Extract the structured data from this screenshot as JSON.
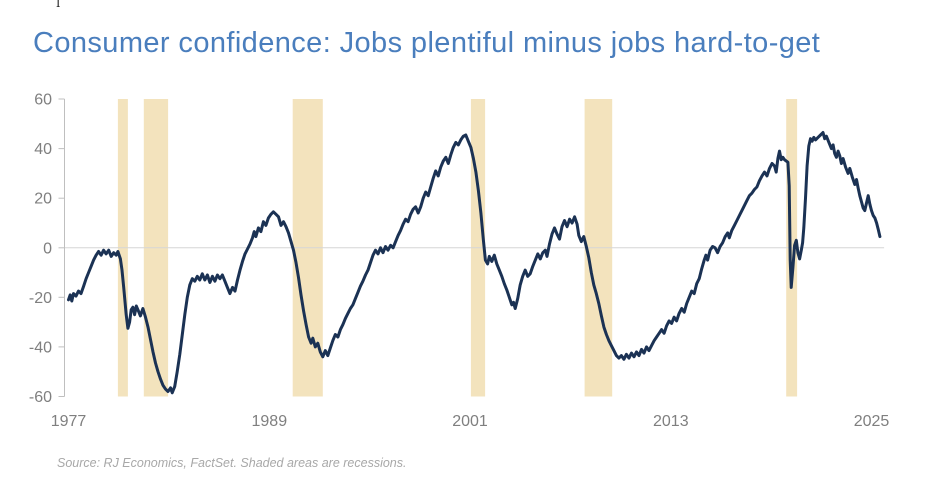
{
  "page": {
    "title": "Consumer confidence: Jobs plentiful minus jobs hard-to-get",
    "source_note": "Source: RJ Economics, FactSet. Shaded areas are recessions.",
    "cursor_artifact_glyph": "I"
  },
  "colors": {
    "title": "#4A7EBD",
    "line": "#1B3254",
    "recession_band": "#F3E3BD",
    "axis_labels": "#7F7F7F",
    "axis_line": "#BFBFBF",
    "zero_gridline": "#D6D6D6",
    "source_note": "#A8A8A8",
    "background": "#FFFFFF"
  },
  "chart_data": {
    "type": "line",
    "title": "Consumer confidence: Jobs plentiful minus jobs hard-to-get",
    "series_name": "Jobs plentiful minus jobs hard-to-get",
    "xlabel": "",
    "ylabel": "",
    "legend": "none",
    "grid": "zero-line-only",
    "x_axis": {
      "ticks": [
        1977,
        1989,
        2001,
        2013,
        2025
      ],
      "min": 1976.8,
      "max": 2026.0
    },
    "y_axis": {
      "ticks": [
        60,
        40,
        20,
        0,
        -20,
        -40,
        -60
      ],
      "min": -60,
      "max": 60
    },
    "recessions": [
      [
        1979.95,
        1980.55
      ],
      [
        1981.5,
        1982.95
      ],
      [
        1990.4,
        1992.2
      ],
      [
        2001.05,
        2001.9
      ],
      [
        2007.85,
        2009.5
      ],
      [
        2019.9,
        2020.55
      ]
    ],
    "points": [
      [
        1977.0,
        -21
      ],
      [
        1977.1,
        -19
      ],
      [
        1977.2,
        -21.5
      ],
      [
        1977.3,
        -18.5
      ],
      [
        1977.45,
        -19.5
      ],
      [
        1977.6,
        -17.5
      ],
      [
        1977.75,
        -18.5
      ],
      [
        1977.9,
        -15.5
      ],
      [
        1978.05,
        -12.5
      ],
      [
        1978.2,
        -10
      ],
      [
        1978.35,
        -7.5
      ],
      [
        1978.5,
        -5
      ],
      [
        1978.65,
        -3
      ],
      [
        1978.8,
        -1.5
      ],
      [
        1978.95,
        -3
      ],
      [
        1979.1,
        -1
      ],
      [
        1979.25,
        -2.5
      ],
      [
        1979.4,
        -1
      ],
      [
        1979.55,
        -3.5
      ],
      [
        1979.7,
        -2
      ],
      [
        1979.85,
        -3
      ],
      [
        1979.95,
        -1.5
      ],
      [
        1980.1,
        -4.5
      ],
      [
        1980.2,
        -9
      ],
      [
        1980.3,
        -16
      ],
      [
        1980.45,
        -27
      ],
      [
        1980.55,
        -32.5
      ],
      [
        1980.65,
        -30
      ],
      [
        1980.75,
        -25
      ],
      [
        1980.85,
        -24
      ],
      [
        1980.95,
        -27
      ],
      [
        1981.05,
        -23.5
      ],
      [
        1981.15,
        -25
      ],
      [
        1981.3,
        -27.5
      ],
      [
        1981.45,
        -24.5
      ],
      [
        1981.6,
        -28
      ],
      [
        1981.75,
        -32
      ],
      [
        1981.9,
        -37
      ],
      [
        1982.05,
        -42
      ],
      [
        1982.2,
        -46.5
      ],
      [
        1982.35,
        -50
      ],
      [
        1982.5,
        -53
      ],
      [
        1982.65,
        -55.5
      ],
      [
        1982.8,
        -57
      ],
      [
        1982.95,
        -58
      ],
      [
        1983.1,
        -56.5
      ],
      [
        1983.2,
        -58.5
      ],
      [
        1983.35,
        -56
      ],
      [
        1983.5,
        -50
      ],
      [
        1983.65,
        -43
      ],
      [
        1983.8,
        -35
      ],
      [
        1983.95,
        -27
      ],
      [
        1984.1,
        -20
      ],
      [
        1984.25,
        -15
      ],
      [
        1984.4,
        -12.5
      ],
      [
        1984.55,
        -13.5
      ],
      [
        1984.7,
        -11.5
      ],
      [
        1984.85,
        -13
      ],
      [
        1985.0,
        -10.5
      ],
      [
        1985.15,
        -13
      ],
      [
        1985.3,
        -11
      ],
      [
        1985.45,
        -14
      ],
      [
        1985.6,
        -11.5
      ],
      [
        1985.75,
        -13.5
      ],
      [
        1985.9,
        -11
      ],
      [
        1986.05,
        -12.5
      ],
      [
        1986.2,
        -11
      ],
      [
        1986.35,
        -13.5
      ],
      [
        1986.5,
        -16
      ],
      [
        1986.65,
        -18.5
      ],
      [
        1986.8,
        -16
      ],
      [
        1986.95,
        -17.5
      ],
      [
        1987.1,
        -13
      ],
      [
        1987.25,
        -9
      ],
      [
        1987.4,
        -5.5
      ],
      [
        1987.55,
        -2.5
      ],
      [
        1987.7,
        -0.5
      ],
      [
        1987.85,
        1.5
      ],
      [
        1988.0,
        4
      ],
      [
        1988.1,
        6.5
      ],
      [
        1988.2,
        4.5
      ],
      [
        1988.35,
        8
      ],
      [
        1988.5,
        6.5
      ],
      [
        1988.65,
        10.5
      ],
      [
        1988.8,
        9
      ],
      [
        1988.95,
        12
      ],
      [
        1989.1,
        13.5
      ],
      [
        1989.25,
        14.5
      ],
      [
        1989.4,
        13.5
      ],
      [
        1989.55,
        12.5
      ],
      [
        1989.7,
        9
      ],
      [
        1989.85,
        10.5
      ],
      [
        1990.0,
        8.5
      ],
      [
        1990.15,
        6
      ],
      [
        1990.3,
        2.5
      ],
      [
        1990.45,
        -1
      ],
      [
        1990.6,
        -6
      ],
      [
        1990.75,
        -12
      ],
      [
        1990.9,
        -19
      ],
      [
        1991.05,
        -25.5
      ],
      [
        1991.2,
        -31
      ],
      [
        1991.35,
        -36
      ],
      [
        1991.5,
        -38.5
      ],
      [
        1991.6,
        -36.5
      ],
      [
        1991.75,
        -40
      ],
      [
        1991.9,
        -38.5
      ],
      [
        1992.05,
        -42
      ],
      [
        1992.2,
        -44
      ],
      [
        1992.35,
        -41.5
      ],
      [
        1992.5,
        -43.5
      ],
      [
        1992.65,
        -40.5
      ],
      [
        1992.8,
        -37.5
      ],
      [
        1992.95,
        -35
      ],
      [
        1993.1,
        -36
      ],
      [
        1993.25,
        -33
      ],
      [
        1993.4,
        -31
      ],
      [
        1993.55,
        -28.5
      ],
      [
        1993.7,
        -26.5
      ],
      [
        1993.85,
        -24.5
      ],
      [
        1994.0,
        -23
      ],
      [
        1994.15,
        -20.5
      ],
      [
        1994.3,
        -18
      ],
      [
        1994.45,
        -15.5
      ],
      [
        1994.6,
        -13.5
      ],
      [
        1994.75,
        -11
      ],
      [
        1994.9,
        -9
      ],
      [
        1995.05,
        -6
      ],
      [
        1995.2,
        -3
      ],
      [
        1995.35,
        -1
      ],
      [
        1995.5,
        -2.5
      ],
      [
        1995.65,
        0
      ],
      [
        1995.8,
        -2
      ],
      [
        1995.95,
        0.5
      ],
      [
        1996.1,
        -1
      ],
      [
        1996.25,
        1
      ],
      [
        1996.4,
        0
      ],
      [
        1996.55,
        2.5
      ],
      [
        1996.7,
        5
      ],
      [
        1996.85,
        7
      ],
      [
        1997.0,
        9.5
      ],
      [
        1997.15,
        11.5
      ],
      [
        1997.3,
        10.5
      ],
      [
        1997.45,
        13.5
      ],
      [
        1997.6,
        15.5
      ],
      [
        1997.75,
        16.5
      ],
      [
        1997.9,
        14
      ],
      [
        1998.05,
        16.5
      ],
      [
        1998.2,
        20
      ],
      [
        1998.35,
        22.5
      ],
      [
        1998.5,
        21
      ],
      [
        1998.65,
        24.5
      ],
      [
        1998.8,
        28
      ],
      [
        1998.95,
        31
      ],
      [
        1999.1,
        29
      ],
      [
        1999.25,
        32.5
      ],
      [
        1999.4,
        35
      ],
      [
        1999.55,
        36.5
      ],
      [
        1999.7,
        34
      ],
      [
        1999.85,
        37.5
      ],
      [
        2000.0,
        40.5
      ],
      [
        2000.15,
        42.5
      ],
      [
        2000.3,
        41.5
      ],
      [
        2000.45,
        43.5
      ],
      [
        2000.6,
        45
      ],
      [
        2000.75,
        45.5
      ],
      [
        2000.9,
        43
      ],
      [
        2001.05,
        40.5
      ],
      [
        2001.2,
        36
      ],
      [
        2001.35,
        30.5
      ],
      [
        2001.5,
        23
      ],
      [
        2001.65,
        14
      ],
      [
        2001.8,
        3
      ],
      [
        2001.92,
        -5
      ],
      [
        2002.05,
        -6.5
      ],
      [
        2002.15,
        -3.5
      ],
      [
        2002.3,
        -5.5
      ],
      [
        2002.45,
        -3
      ],
      [
        2002.6,
        -6.5
      ],
      [
        2002.75,
        -9
      ],
      [
        2002.9,
        -11.5
      ],
      [
        2003.05,
        -14.5
      ],
      [
        2003.2,
        -17
      ],
      [
        2003.35,
        -20
      ],
      [
        2003.5,
        -23
      ],
      [
        2003.6,
        -22
      ],
      [
        2003.7,
        -24.5
      ],
      [
        2003.85,
        -20.5
      ],
      [
        2004.0,
        -15
      ],
      [
        2004.15,
        -11.5
      ],
      [
        2004.3,
        -9
      ],
      [
        2004.45,
        -11.5
      ],
      [
        2004.6,
        -10.5
      ],
      [
        2004.75,
        -7.5
      ],
      [
        2004.9,
        -5
      ],
      [
        2005.05,
        -2.5
      ],
      [
        2005.2,
        -4.5
      ],
      [
        2005.35,
        -2
      ],
      [
        2005.5,
        -1
      ],
      [
        2005.6,
        -3.5
      ],
      [
        2005.75,
        1.5
      ],
      [
        2005.9,
        5.5
      ],
      [
        2006.05,
        8
      ],
      [
        2006.2,
        5.5
      ],
      [
        2006.35,
        3.5
      ],
      [
        2006.5,
        8.5
      ],
      [
        2006.65,
        11
      ],
      [
        2006.8,
        8.5
      ],
      [
        2006.95,
        11.5
      ],
      [
        2007.1,
        10
      ],
      [
        2007.25,
        12.5
      ],
      [
        2007.4,
        9.5
      ],
      [
        2007.5,
        5
      ],
      [
        2007.65,
        2.5
      ],
      [
        2007.8,
        4.5
      ],
      [
        2007.95,
        0.5
      ],
      [
        2008.1,
        -4
      ],
      [
        2008.25,
        -10
      ],
      [
        2008.4,
        -15
      ],
      [
        2008.55,
        -18.5
      ],
      [
        2008.7,
        -22.5
      ],
      [
        2008.85,
        -27.5
      ],
      [
        2009.0,
        -32
      ],
      [
        2009.15,
        -35
      ],
      [
        2009.3,
        -37.5
      ],
      [
        2009.45,
        -39.5
      ],
      [
        2009.6,
        -41.5
      ],
      [
        2009.75,
        -43.5
      ],
      [
        2009.9,
        -44.5
      ],
      [
        2010.05,
        -43.5
      ],
      [
        2010.2,
        -45
      ],
      [
        2010.35,
        -43
      ],
      [
        2010.5,
        -44.5
      ],
      [
        2010.65,
        -42.5
      ],
      [
        2010.8,
        -44
      ],
      [
        2010.95,
        -42
      ],
      [
        2011.1,
        -43.5
      ],
      [
        2011.25,
        -41
      ],
      [
        2011.4,
        -42.5
      ],
      [
        2011.55,
        -40
      ],
      [
        2011.7,
        -41.5
      ],
      [
        2011.85,
        -39.5
      ],
      [
        2012.0,
        -37.5
      ],
      [
        2012.15,
        -36
      ],
      [
        2012.3,
        -34.5
      ],
      [
        2012.45,
        -33
      ],
      [
        2012.6,
        -34.5
      ],
      [
        2012.75,
        -31.5
      ],
      [
        2012.9,
        -29.5
      ],
      [
        2013.05,
        -30.5
      ],
      [
        2013.2,
        -28
      ],
      [
        2013.35,
        -29.5
      ],
      [
        2013.5,
        -26.5
      ],
      [
        2013.65,
        -24.5
      ],
      [
        2013.8,
        -26
      ],
      [
        2013.95,
        -22.5
      ],
      [
        2014.1,
        -20
      ],
      [
        2014.25,
        -17.5
      ],
      [
        2014.4,
        -18.5
      ],
      [
        2014.55,
        -14.5
      ],
      [
        2014.7,
        -12.5
      ],
      [
        2014.85,
        -8.5
      ],
      [
        2015.0,
        -5
      ],
      [
        2015.1,
        -3
      ],
      [
        2015.2,
        -5
      ],
      [
        2015.35,
        -1
      ],
      [
        2015.5,
        0.5
      ],
      [
        2015.65,
        0
      ],
      [
        2015.8,
        -2
      ],
      [
        2015.95,
        0.5
      ],
      [
        2016.1,
        2
      ],
      [
        2016.25,
        4.5
      ],
      [
        2016.4,
        6
      ],
      [
        2016.5,
        4
      ],
      [
        2016.65,
        7
      ],
      [
        2016.8,
        9
      ],
      [
        2016.95,
        11
      ],
      [
        2017.1,
        13
      ],
      [
        2017.25,
        15
      ],
      [
        2017.4,
        17
      ],
      [
        2017.55,
        19
      ],
      [
        2017.7,
        21
      ],
      [
        2017.85,
        22
      ],
      [
        2018.0,
        23.5
      ],
      [
        2018.15,
        24.5
      ],
      [
        2018.3,
        27
      ],
      [
        2018.45,
        29
      ],
      [
        2018.6,
        30.5
      ],
      [
        2018.75,
        29
      ],
      [
        2018.9,
        32
      ],
      [
        2019.05,
        34
      ],
      [
        2019.2,
        33
      ],
      [
        2019.3,
        30.5
      ],
      [
        2019.4,
        36
      ],
      [
        2019.5,
        39
      ],
      [
        2019.6,
        35.5
      ],
      [
        2019.7,
        36.5
      ],
      [
        2019.8,
        35.5
      ],
      [
        2019.9,
        35
      ],
      [
        2020.0,
        34.5
      ],
      [
        2020.08,
        25
      ],
      [
        2020.14,
        -5
      ],
      [
        2020.2,
        -16
      ],
      [
        2020.3,
        -8
      ],
      [
        2020.4,
        1
      ],
      [
        2020.5,
        3
      ],
      [
        2020.6,
        -2
      ],
      [
        2020.7,
        -4.5
      ],
      [
        2020.8,
        -1
      ],
      [
        2020.88,
        2
      ],
      [
        2020.95,
        8
      ],
      [
        2021.05,
        20
      ],
      [
        2021.15,
        33
      ],
      [
        2021.25,
        41
      ],
      [
        2021.35,
        44
      ],
      [
        2021.45,
        43
      ],
      [
        2021.55,
        44.5
      ],
      [
        2021.65,
        43.5
      ],
      [
        2021.8,
        44.5
      ],
      [
        2021.95,
        45.5
      ],
      [
        2022.1,
        46.5
      ],
      [
        2022.2,
        44
      ],
      [
        2022.3,
        45
      ],
      [
        2022.45,
        42.5
      ],
      [
        2022.6,
        40
      ],
      [
        2022.7,
        41.5
      ],
      [
        2022.8,
        38
      ],
      [
        2022.9,
        36.5
      ],
      [
        2023.0,
        39
      ],
      [
        2023.1,
        37
      ],
      [
        2023.2,
        34
      ],
      [
        2023.3,
        36
      ],
      [
        2023.45,
        32.5
      ],
      [
        2023.6,
        30
      ],
      [
        2023.7,
        32
      ],
      [
        2023.85,
        28.5
      ],
      [
        2024.0,
        25.5
      ],
      [
        2024.1,
        27.5
      ],
      [
        2024.2,
        24
      ],
      [
        2024.3,
        21
      ],
      [
        2024.4,
        18.5
      ],
      [
        2024.5,
        16
      ],
      [
        2024.6,
        15
      ],
      [
        2024.7,
        18
      ],
      [
        2024.8,
        21
      ],
      [
        2024.9,
        17.5
      ],
      [
        2025.0,
        15
      ],
      [
        2025.1,
        13
      ],
      [
        2025.2,
        12
      ],
      [
        2025.3,
        10
      ],
      [
        2025.4,
        7.5
      ],
      [
        2025.5,
        4.5
      ]
    ]
  }
}
